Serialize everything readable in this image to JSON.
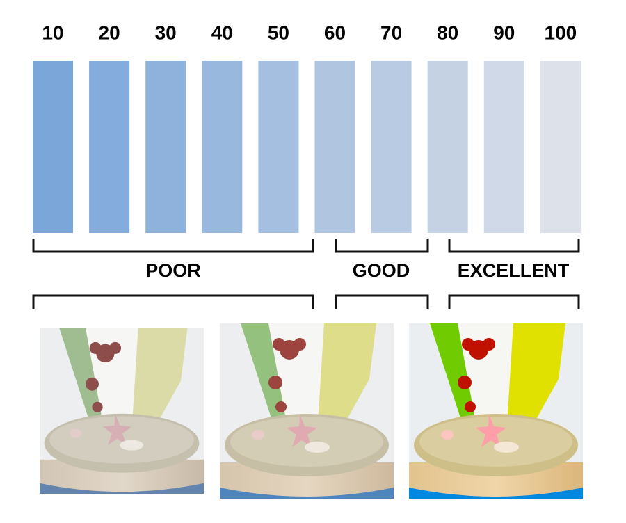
{
  "scale": {
    "steps": [
      {
        "label": 10,
        "color": "#7aa6d9"
      },
      {
        "label": 20,
        "color": "#84acdc"
      },
      {
        "label": 30,
        "color": "#8fb2dd"
      },
      {
        "label": 40,
        "color": "#99b8de"
      },
      {
        "label": 50,
        "color": "#a4bfdf"
      },
      {
        "label": 60,
        "color": "#afc5e0"
      },
      {
        "label": 70,
        "color": "#b9cbe2"
      },
      {
        "label": 80,
        "color": "#c4d2e4"
      },
      {
        "label": 90,
        "color": "#cfd9e7"
      },
      {
        "label": 100,
        "color": "#dde2ea"
      }
    ]
  },
  "groups": [
    {
      "label": "POOR"
    },
    {
      "label": "GOOD"
    },
    {
      "label": "EXCELLENT"
    }
  ]
}
